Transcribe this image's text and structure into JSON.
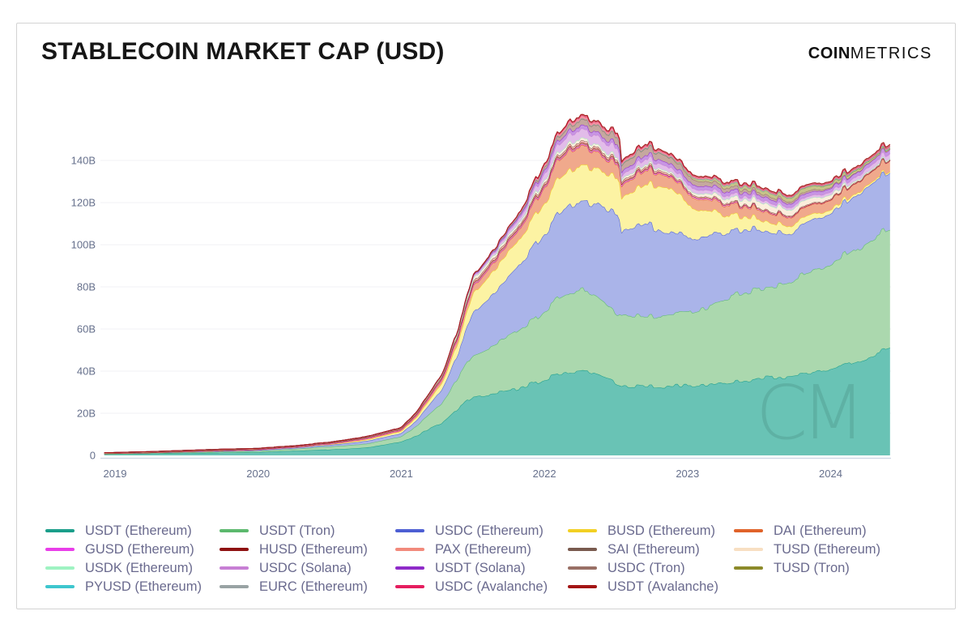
{
  "header": {
    "title": "STABLECOIN MARKET CAP (USD)",
    "logo_bold": "COIN",
    "logo_light": "METRICS"
  },
  "watermark_text": "CM",
  "colors": {
    "title": "#161616",
    "axis_label": "#66708c",
    "legend_label": "#6a6a8e",
    "gridline": "#f0f0f4",
    "axis_line": "#ccd5e3",
    "card_border": "#d3d3d3",
    "watermark": "rgba(26,61,56,0.13)"
  },
  "chart_data": {
    "type": "area",
    "stacked": true,
    "title": "STABLECOIN MARKET CAP (USD)",
    "unit": "USD billions",
    "xlim": [
      2018.92,
      2024.45
    ],
    "ylim": [
      0,
      165
    ],
    "grid": true,
    "legend_position": "bottom",
    "x_tick_labels": [
      "2019",
      "2020",
      "2021",
      "2022",
      "2023",
      "2024"
    ],
    "x_tick_values": [
      2019,
      2020,
      2021,
      2022,
      2023,
      2024
    ],
    "y_tick_labels": [
      "0",
      "20B",
      "40B",
      "60B",
      "80B",
      "100B",
      "120B",
      "140B"
    ],
    "y_tick_values": [
      0,
      20,
      40,
      60,
      80,
      100,
      120,
      140
    ],
    "x": [
      2018.92,
      2019.0,
      2019.25,
      2019.5,
      2019.75,
      2020.0,
      2020.25,
      2020.5,
      2020.75,
      2021.0,
      2021.1,
      2021.2,
      2021.3,
      2021.42,
      2021.5,
      2021.65,
      2021.8,
      2021.92,
      2022.0,
      2022.1,
      2022.2,
      2022.3,
      2022.36,
      2022.4,
      2022.45,
      2022.52,
      2022.54,
      2022.7,
      2022.85,
      2023.0,
      2023.15,
      2023.3,
      2023.5,
      2023.7,
      2023.85,
      2024.0,
      2024.15,
      2024.3,
      2024.42
    ],
    "series": [
      {
        "name": "USDT (Ethereum)",
        "color": "#1b9e8a",
        "fill": "#69c3b5",
        "values": [
          0.65,
          0.7,
          0.9,
          1.1,
          1.3,
          1.5,
          2.2,
          2.8,
          3.6,
          6.5,
          9.0,
          13.0,
          16.0,
          24.0,
          28.0,
          29.5,
          31.0,
          34.0,
          36.0,
          38.0,
          39.5,
          40.0,
          38.5,
          37.5,
          36.5,
          34.0,
          33.5,
          33.0,
          33.0,
          33.3,
          34.0,
          35.0,
          36.5,
          37.0,
          38.8,
          40.5,
          44.0,
          48.0,
          51.0
        ]
      },
      {
        "name": "USDT (Tron)",
        "color": "#5cb96e",
        "fill": "#abd8ae",
        "values": [
          0.0,
          0.0,
          0.1,
          0.3,
          0.45,
          0.55,
          0.9,
          1.4,
          1.8,
          2.5,
          4.5,
          7.0,
          10.0,
          16.0,
          20.0,
          23.0,
          27.0,
          30.0,
          33.0,
          36.0,
          38.0,
          38.5,
          38.0,
          36.5,
          35.0,
          33.5,
          33.5,
          33.8,
          34.2,
          35.0,
          37.5,
          40.5,
          43.0,
          44.0,
          47.5,
          49.5,
          53.0,
          56.5,
          57.5
        ]
      },
      {
        "name": "USDC (Ethereum)",
        "color": "#4d5fd3",
        "fill": "#aab4e9",
        "values": [
          0.25,
          0.25,
          0.28,
          0.32,
          0.38,
          0.42,
          0.5,
          0.75,
          1.3,
          1.5,
          2.5,
          4.5,
          7.0,
          13.0,
          20.0,
          25.0,
          30.0,
          35.0,
          37.0,
          41.0,
          42.5,
          42.0,
          43.5,
          44.0,
          45.5,
          48.0,
          40.0,
          45.0,
          40.0,
          36.0,
          34.5,
          31.0,
          28.0,
          22.5,
          24.0,
          24.0,
          25.0,
          26.5,
          26.5
        ]
      },
      {
        "name": "BUSD (Ethereum)",
        "color": "#f2d024",
        "fill": "#fcf3a3",
        "values": [
          0.0,
          0.0,
          0.02,
          0.05,
          0.1,
          0.15,
          0.2,
          0.3,
          0.6,
          1.0,
          1.5,
          2.2,
          3.2,
          6.0,
          9.0,
          11.0,
          12.0,
          13.5,
          14.5,
          16.5,
          17.0,
          17.0,
          16.5,
          16.5,
          17.0,
          18.0,
          16.0,
          18.5,
          21.5,
          16.0,
          11.5,
          7.5,
          5.0,
          3.8,
          2.8,
          1.8,
          1.1,
          0.8,
          0.7
        ]
      },
      {
        "name": "DAI (Ethereum)",
        "color": "#e0632a",
        "fill": "#f0a98c",
        "values": [
          0.0,
          0.0,
          0.0,
          0.0,
          0.05,
          0.08,
          0.1,
          0.2,
          0.45,
          0.45,
          0.7,
          1.1,
          1.6,
          2.5,
          3.3,
          3.8,
          4.5,
          6.0,
          7.5,
          8.8,
          9.3,
          8.8,
          7.8,
          7.0,
          6.5,
          6.8,
          5.8,
          6.8,
          5.4,
          5.1,
          5.2,
          4.8,
          4.5,
          4.1,
          4.4,
          4.6,
          4.9,
          5.0,
          5.1
        ]
      },
      {
        "name": "GUSD (Ethereum)",
        "color": "#e93ee9",
        "fill": "#f3a0ef",
        "values": [
          0.03,
          0.03,
          0.03,
          0.03,
          0.03,
          0.03,
          0.03,
          0.05,
          0.08,
          0.1,
          0.12,
          0.15,
          0.18,
          0.2,
          0.2,
          0.2,
          0.25,
          0.3,
          0.3,
          0.3,
          0.3,
          0.3,
          0.3,
          0.3,
          0.3,
          0.3,
          0.3,
          0.3,
          0.4,
          0.6,
          0.6,
          0.55,
          0.5,
          0.4,
          0.3,
          0.2,
          0.15,
          0.1,
          0.1
        ]
      },
      {
        "name": "HUSD (Ethereum)",
        "color": "#8e1212",
        "fill": "#c88a8a",
        "values": [
          0.0,
          0.0,
          0.0,
          0.05,
          0.1,
          0.15,
          0.2,
          0.3,
          0.4,
          0.5,
          0.6,
          0.7,
          0.8,
          0.9,
          1.0,
          1.0,
          1.0,
          1.0,
          1.0,
          1.0,
          1.0,
          1.0,
          1.0,
          0.95,
          0.9,
          0.9,
          0.85,
          0.7,
          0.4,
          0.15,
          0.1,
          0.08,
          0.05,
          0.04,
          0.03,
          0.02,
          0.02,
          0.01,
          0.01
        ]
      },
      {
        "name": "PAX (Ethereum)",
        "color": "#f28a7c",
        "fill": "#f8c5bb",
        "values": [
          0.1,
          0.1,
          0.14,
          0.18,
          0.2,
          0.2,
          0.22,
          0.24,
          0.28,
          0.35,
          0.5,
          0.6,
          0.7,
          0.8,
          0.9,
          0.92,
          0.9,
          0.9,
          0.95,
          0.95,
          0.95,
          0.9,
          0.9,
          0.9,
          0.9,
          0.9,
          0.85,
          0.85,
          0.8,
          0.7,
          0.6,
          0.55,
          0.5,
          0.5,
          0.45,
          0.45,
          0.4,
          0.4,
          0.4
        ]
      },
      {
        "name": "SAI (Ethereum)",
        "color": "#795a4e",
        "fill": "#b9a198",
        "values": [
          0.1,
          0.1,
          0.1,
          0.12,
          0.12,
          0.08,
          0.05,
          0.04,
          0.03,
          0.03,
          0.03,
          0.03,
          0.03,
          0.02,
          0.02,
          0.02,
          0.02,
          0.02,
          0.02,
          0.02,
          0.02,
          0.02,
          0.02,
          0.02,
          0.02,
          0.02,
          0.02,
          0.02,
          0.02,
          0.01,
          0.01,
          0.01,
          0.01,
          0.01,
          0.01,
          0.01,
          0.01,
          0.01,
          0.01
        ]
      },
      {
        "name": "TUSD (Ethereum)",
        "color": "#f8dfc2",
        "fill": "#fbeedd",
        "values": [
          0.2,
          0.2,
          0.22,
          0.21,
          0.2,
          0.15,
          0.14,
          0.16,
          0.25,
          0.3,
          0.35,
          0.4,
          0.5,
          1.2,
          1.4,
          1.3,
          1.2,
          1.2,
          1.3,
          1.4,
          1.4,
          1.3,
          1.2,
          1.2,
          1.2,
          1.1,
          1.0,
          0.9,
          0.8,
          0.9,
          1.6,
          2.1,
          2.9,
          2.7,
          2.5,
          1.9,
          0.7,
          0.5,
          0.5
        ]
      },
      {
        "name": "USDK (Ethereum)",
        "color": "#9ff3c2",
        "fill": "#ccf9e0",
        "values": [
          0.0,
          0.0,
          0.02,
          0.03,
          0.03,
          0.03,
          0.03,
          0.03,
          0.03,
          0.03,
          0.03,
          0.03,
          0.03,
          0.03,
          0.03,
          0.03,
          0.03,
          0.03,
          0.03,
          0.03,
          0.03,
          0.03,
          0.03,
          0.03,
          0.03,
          0.03,
          0.03,
          0.03,
          0.03,
          0.03,
          0.02,
          0.02,
          0.02,
          0.02,
          0.02,
          0.02,
          0.02,
          0.02,
          0.02
        ]
      },
      {
        "name": "USDC (Solana)",
        "color": "#c77fd4",
        "fill": "#e2bce9",
        "values": [
          0,
          0,
          0,
          0,
          0,
          0,
          0,
          0,
          0,
          0.0,
          0.1,
          0.2,
          0.3,
          0.5,
          0.8,
          1.2,
          1.8,
          2.5,
          3.2,
          3.8,
          4.2,
          4.3,
          4.3,
          4.3,
          4.4,
          4.5,
          1.8,
          2.6,
          2.3,
          2.0,
          1.7,
          1.5,
          1.3,
          1.2,
          1.2,
          1.4,
          1.8,
          2.3,
          2.4
        ]
      },
      {
        "name": "USDT (Solana)",
        "color": "#8f2bc9",
        "fill": "#c795e3",
        "values": [
          0,
          0,
          0,
          0,
          0,
          0,
          0,
          0,
          0,
          0,
          0,
          0.05,
          0.1,
          0.2,
          0.4,
          0.7,
          1.0,
          1.4,
          1.7,
          1.8,
          1.8,
          1.8,
          1.8,
          1.8,
          1.8,
          1.8,
          1.8,
          1.8,
          1.8,
          1.8,
          1.8,
          1.8,
          1.8,
          1.7,
          1.7,
          1.6,
          1.7,
          1.9,
          2.0
        ]
      },
      {
        "name": "USDC (Tron)",
        "color": "#997066",
        "fill": "#c5a89f",
        "values": [
          0,
          0,
          0,
          0,
          0,
          0,
          0,
          0,
          0,
          0,
          0,
          0,
          0.05,
          0.1,
          0.2,
          0.3,
          0.5,
          0.8,
          1.2,
          1.8,
          2.4,
          2.8,
          3.0,
          3.1,
          3.2,
          3.3,
          3.2,
          3.3,
          3.0,
          2.6,
          2.1,
          1.7,
          1.2,
          1.0,
          0.9,
          0.5,
          0.25,
          0.1,
          0.05
        ]
      },
      {
        "name": "TUSD (Tron)",
        "color": "#8c8a2a",
        "fill": "#c5c489",
        "values": [
          0,
          0,
          0,
          0,
          0,
          0,
          0,
          0,
          0,
          0,
          0,
          0,
          0,
          0.1,
          0.15,
          0.2,
          0.25,
          0.3,
          0.3,
          0.3,
          0.3,
          0.3,
          0.3,
          0.3,
          0.3,
          0.3,
          0.3,
          0.3,
          0.3,
          0.8,
          1.2,
          1.5,
          1.7,
          1.9,
          1.9,
          1.5,
          1.2,
          0.8,
          0.5
        ]
      },
      {
        "name": "PYUSD (Ethereum)",
        "color": "#3ec6ce",
        "fill": "#9fe2e6",
        "values": [
          0,
          0,
          0,
          0,
          0,
          0,
          0,
          0,
          0,
          0,
          0,
          0,
          0,
          0,
          0,
          0,
          0,
          0,
          0,
          0,
          0,
          0,
          0,
          0,
          0,
          0,
          0,
          0,
          0,
          0,
          0,
          0,
          0.05,
          0.1,
          0.16,
          0.25,
          0.3,
          0.2,
          0.3
        ]
      },
      {
        "name": "EURC (Ethereum)",
        "color": "#99a3a4",
        "fill": "#c8cecf",
        "values": [
          0,
          0,
          0,
          0,
          0,
          0,
          0,
          0,
          0,
          0,
          0,
          0,
          0,
          0,
          0,
          0,
          0,
          0,
          0,
          0,
          0,
          0,
          0,
          0,
          0,
          0,
          0.08,
          0.08,
          0.08,
          0.08,
          0.08,
          0.08,
          0.08,
          0.08,
          0.08,
          0.1,
          0.1,
          0.1,
          0.1
        ]
      },
      {
        "name": "USDC (Avalanche)",
        "color": "#e51e5f",
        "fill": "#f2909f",
        "values": [
          0,
          0,
          0,
          0,
          0,
          0,
          0,
          0,
          0,
          0,
          0,
          0,
          0,
          0,
          0,
          0.3,
          0.6,
          0.9,
          1.1,
          1.3,
          1.4,
          1.4,
          1.3,
          1.3,
          1.3,
          1.3,
          1.1,
          1.0,
          0.9,
          0.8,
          0.7,
          0.65,
          0.6,
          0.55,
          0.5,
          0.55,
          0.6,
          0.65,
          0.7
        ]
      },
      {
        "name": "USDT (Avalanche)",
        "color": "#a31515",
        "fill": "#d18a8a",
        "values": [
          0,
          0,
          0,
          0,
          0,
          0,
          0,
          0,
          0,
          0,
          0,
          0,
          0,
          0,
          0,
          0,
          0,
          0.3,
          0.35,
          0.4,
          0.45,
          0.5,
          0.5,
          0.5,
          0.5,
          0.5,
          0.5,
          0.5,
          0.5,
          0.5,
          0.5,
          0.5,
          0.5,
          0.5,
          0.5,
          0.5,
          0.6,
          0.65,
          0.75
        ]
      }
    ]
  }
}
